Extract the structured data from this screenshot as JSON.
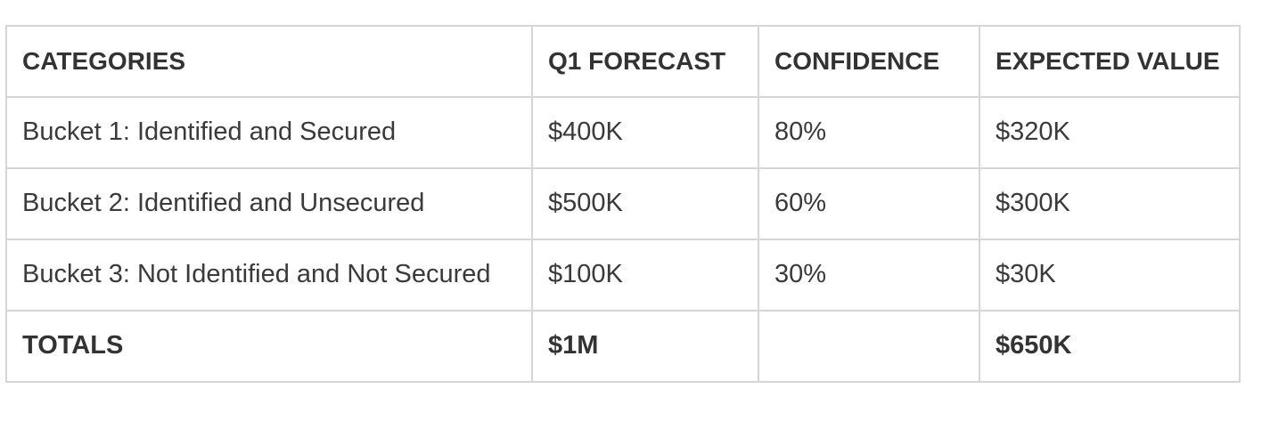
{
  "table": {
    "headers": [
      "CATEGORIES",
      "Q1 FORECAST",
      "CONFIDENCE",
      "EXPECTED VALUE"
    ],
    "rows": [
      [
        "Bucket 1: Identified and Secured",
        "$400K",
        "80%",
        "$320K"
      ],
      [
        "Bucket 2: Identified and Unsecured",
        "$500K",
        "60%",
        "$300K"
      ],
      [
        "Bucket 3: Not Identified and Not Secured",
        "$100K",
        "30%",
        "$30K"
      ]
    ],
    "totals": [
      "TOTALS",
      "$1M",
      "",
      "$650K"
    ]
  }
}
